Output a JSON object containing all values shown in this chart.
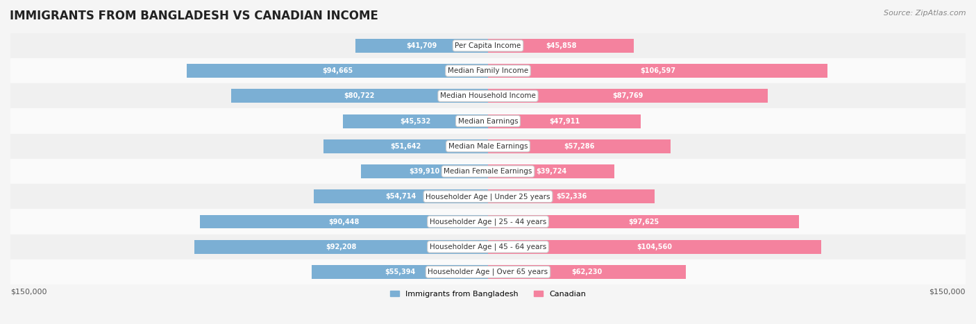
{
  "title": "IMMIGRANTS FROM BANGLADESH VS CANADIAN INCOME",
  "source": "Source: ZipAtlas.com",
  "categories": [
    "Per Capita Income",
    "Median Family Income",
    "Median Household Income",
    "Median Earnings",
    "Median Male Earnings",
    "Median Female Earnings",
    "Householder Age | Under 25 years",
    "Householder Age | 25 - 44 years",
    "Householder Age | 45 - 64 years",
    "Householder Age | Over 65 years"
  ],
  "bangladesh_values": [
    41709,
    94665,
    80722,
    45532,
    51642,
    39910,
    54714,
    90448,
    92208,
    55394
  ],
  "canadian_values": [
    45858,
    106597,
    87769,
    47911,
    57286,
    39724,
    52336,
    97625,
    104560,
    62230
  ],
  "bangladesh_labels": [
    "$41,709",
    "$94,665",
    "$80,722",
    "$45,532",
    "$51,642",
    "$39,910",
    "$54,714",
    "$90,448",
    "$92,208",
    "$55,394"
  ],
  "canadian_labels": [
    "$45,858",
    "$106,597",
    "$87,769",
    "$47,911",
    "$57,286",
    "$39,724",
    "$52,336",
    "$97,625",
    "$104,560",
    "$62,230"
  ],
  "bangladesh_color": "#7bafd4",
  "canadian_color": "#f4829e",
  "max_value": 150000,
  "bar_height": 0.55,
  "bg_color": "#f5f5f5",
  "row_bg_color": "#ffffff",
  "legend_bangladesh": "Immigrants from Bangladesh",
  "legend_canadian": "Canadian",
  "x_label_left": "$150,000",
  "x_label_right": "$150,000"
}
